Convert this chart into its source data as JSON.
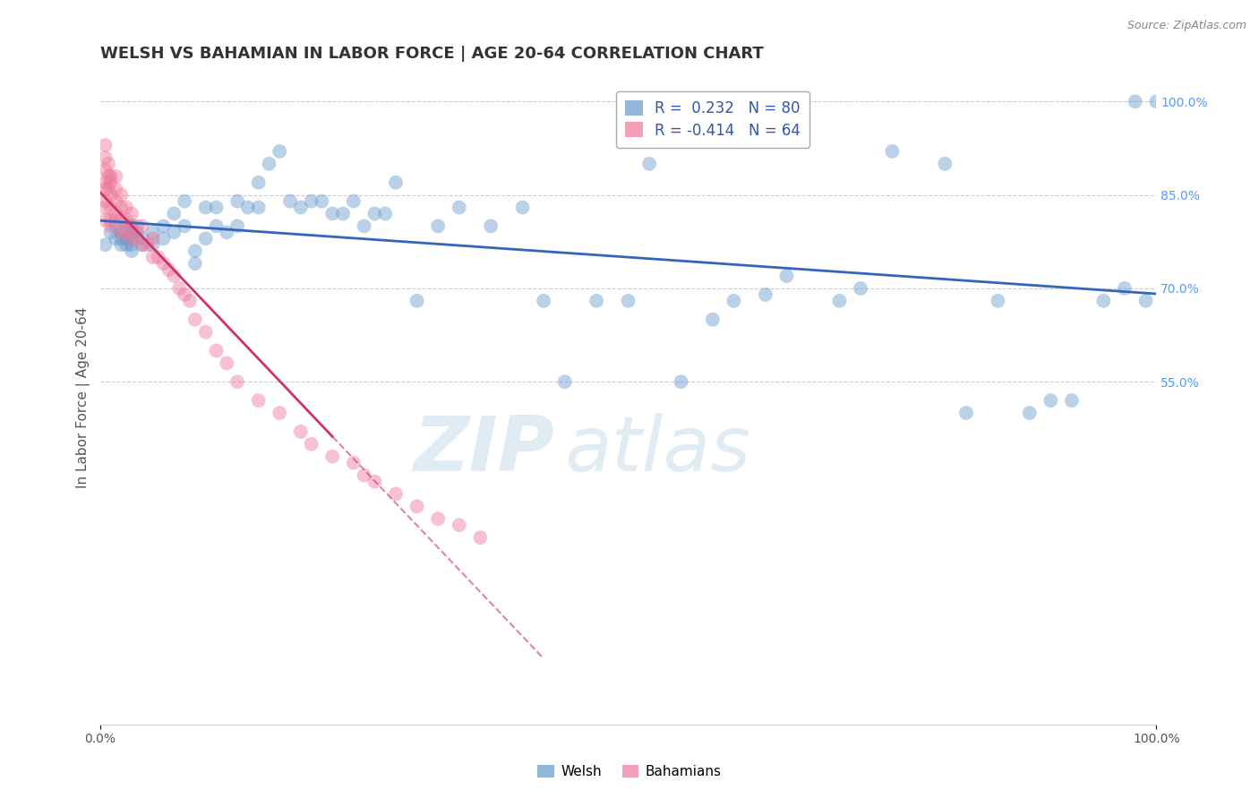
{
  "title": "WELSH VS BAHAMIAN IN LABOR FORCE | AGE 20-64 CORRELATION CHART",
  "source": "Source: ZipAtlas.com",
  "ylabel": "In Labor Force | Age 20-64",
  "xlim": [
    0.0,
    1.0
  ],
  "ylim": [
    0.0,
    1.05
  ],
  "ytick_positions": [
    0.55,
    0.7,
    0.85,
    1.0
  ],
  "ytick_labels": [
    "55.0%",
    "70.0%",
    "85.0%",
    "100.0%"
  ],
  "welsh_R": 0.232,
  "welsh_N": 80,
  "bahamian_R": -0.414,
  "bahamian_N": 64,
  "welsh_color": "#6699cc",
  "bahamian_color": "#ee7799",
  "welsh_line_color": "#3366bb",
  "bahamian_line_color": "#cc3366",
  "welsh_x": [
    0.005,
    0.01,
    0.015,
    0.015,
    0.02,
    0.02,
    0.02,
    0.025,
    0.025,
    0.025,
    0.03,
    0.03,
    0.03,
    0.03,
    0.03,
    0.035,
    0.04,
    0.04,
    0.05,
    0.05,
    0.06,
    0.06,
    0.07,
    0.07,
    0.08,
    0.08,
    0.09,
    0.09,
    0.1,
    0.1,
    0.11,
    0.11,
    0.12,
    0.13,
    0.13,
    0.14,
    0.15,
    0.15,
    0.16,
    0.17,
    0.18,
    0.19,
    0.2,
    0.21,
    0.22,
    0.23,
    0.24,
    0.25,
    0.26,
    0.27,
    0.28,
    0.3,
    0.32,
    0.34,
    0.37,
    0.4,
    0.42,
    0.44,
    0.47,
    0.5,
    0.52,
    0.55,
    0.58,
    0.6,
    0.63,
    0.65,
    0.7,
    0.72,
    0.75,
    0.8,
    0.82,
    0.85,
    0.88,
    0.9,
    0.92,
    0.95,
    0.97,
    0.98,
    0.99,
    1.0
  ],
  "welsh_y": [
    0.77,
    0.79,
    0.8,
    0.78,
    0.79,
    0.78,
    0.77,
    0.8,
    0.78,
    0.77,
    0.8,
    0.79,
    0.78,
    0.77,
    0.76,
    0.79,
    0.78,
    0.77,
    0.79,
    0.77,
    0.8,
    0.78,
    0.82,
    0.79,
    0.84,
    0.8,
    0.76,
    0.74,
    0.83,
    0.78,
    0.83,
    0.8,
    0.79,
    0.84,
    0.8,
    0.83,
    0.87,
    0.83,
    0.9,
    0.92,
    0.84,
    0.83,
    0.84,
    0.84,
    0.82,
    0.82,
    0.84,
    0.8,
    0.82,
    0.82,
    0.87,
    0.68,
    0.8,
    0.83,
    0.8,
    0.83,
    0.68,
    0.55,
    0.68,
    0.68,
    0.9,
    0.55,
    0.65,
    0.68,
    0.69,
    0.72,
    0.68,
    0.7,
    0.92,
    0.9,
    0.5,
    0.68,
    0.5,
    0.52,
    0.52,
    0.68,
    0.7,
    1.0,
    0.68,
    1.0
  ],
  "bahamian_x": [
    0.005,
    0.005,
    0.005,
    0.005,
    0.005,
    0.005,
    0.005,
    0.005,
    0.008,
    0.008,
    0.008,
    0.01,
    0.01,
    0.01,
    0.01,
    0.01,
    0.01,
    0.015,
    0.015,
    0.015,
    0.015,
    0.015,
    0.02,
    0.02,
    0.02,
    0.02,
    0.025,
    0.025,
    0.025,
    0.03,
    0.03,
    0.03,
    0.035,
    0.035,
    0.04,
    0.04,
    0.045,
    0.05,
    0.05,
    0.055,
    0.06,
    0.065,
    0.07,
    0.075,
    0.08,
    0.085,
    0.09,
    0.1,
    0.11,
    0.12,
    0.13,
    0.15,
    0.17,
    0.19,
    0.2,
    0.22,
    0.24,
    0.25,
    0.26,
    0.28,
    0.3,
    0.32,
    0.34,
    0.36
  ],
  "bahamian_y": [
    0.93,
    0.91,
    0.89,
    0.87,
    0.86,
    0.84,
    0.83,
    0.81,
    0.9,
    0.88,
    0.86,
    0.88,
    0.87,
    0.85,
    0.83,
    0.81,
    0.8,
    0.88,
    0.86,
    0.84,
    0.82,
    0.81,
    0.85,
    0.83,
    0.81,
    0.79,
    0.83,
    0.81,
    0.79,
    0.82,
    0.8,
    0.78,
    0.8,
    0.78,
    0.8,
    0.77,
    0.77,
    0.78,
    0.75,
    0.75,
    0.74,
    0.73,
    0.72,
    0.7,
    0.69,
    0.68,
    0.65,
    0.63,
    0.6,
    0.58,
    0.55,
    0.52,
    0.5,
    0.47,
    0.45,
    0.43,
    0.42,
    0.4,
    0.39,
    0.37,
    0.35,
    0.33,
    0.32,
    0.3
  ],
  "watermark_zip": "ZIP",
  "watermark_atlas": "atlas",
  "background_color": "#ffffff",
  "grid_color": "#cccccc",
  "title_fontsize": 13,
  "axis_label_fontsize": 11,
  "tick_fontsize": 10,
  "legend_fontsize": 12
}
